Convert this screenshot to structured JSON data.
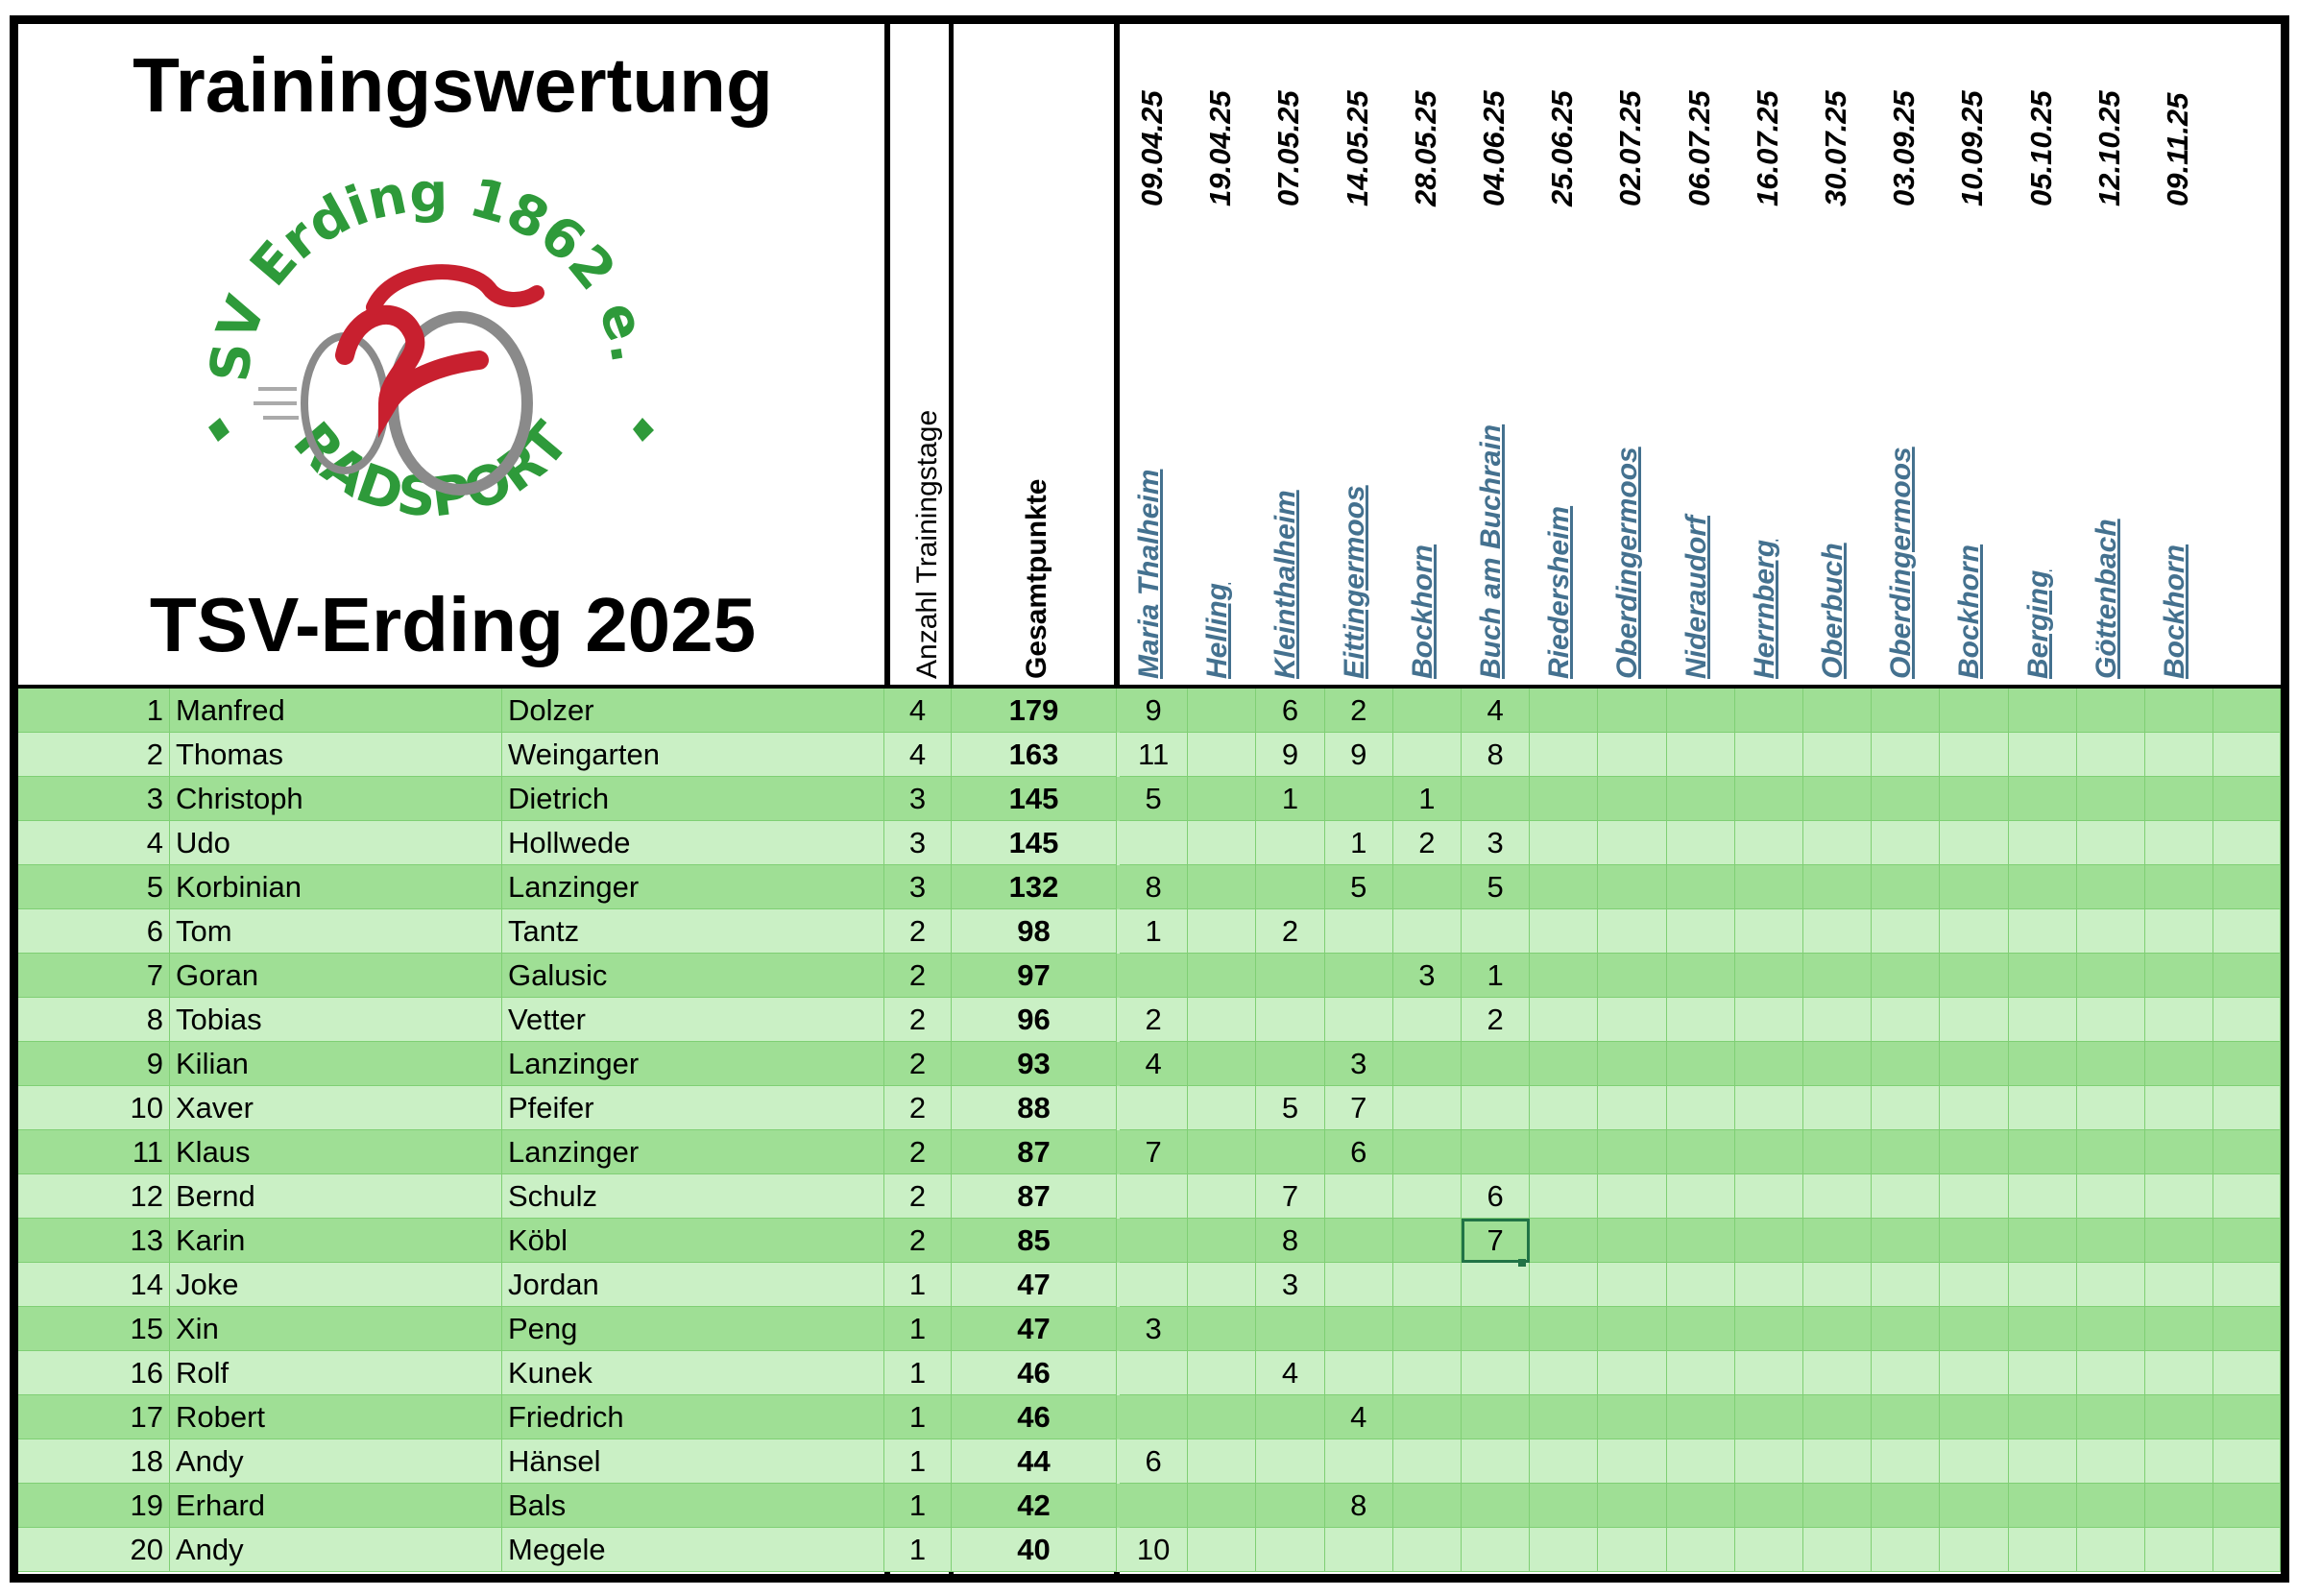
{
  "header": {
    "title": "Trainingswertung",
    "subtitle": "TSV-Erding 2025",
    "col_anzahl": "Anzahl Trainingstage",
    "col_gesamt": "Gesamtpunkte",
    "dates": [
      "09.04.25",
      "19.04.25",
      "07.05.25",
      "14.05.25",
      "28.05.25",
      "04.06.25",
      "25.06.25",
      "02.07.25",
      "06.07.25",
      "16.07.25",
      "30.07.25",
      "03.09.25",
      "10.09.25",
      "05.10.25",
      "12.10.25",
      "09.11.25"
    ],
    "places": [
      "Maria Thalheim",
      "Helling",
      "Kleinthalheim",
      "Eittingermoos",
      "Bockhorn",
      "Buch am Buchrain",
      "Riedersheim",
      "Oberdingermoos",
      "Nideraudorf",
      "Herrnberg",
      "Oberbuch",
      "Oberdingermoos",
      "Bockhorn",
      "Berging",
      "Göttenbach",
      "Bockhorn"
    ]
  },
  "logo": {
    "top_text": "TSV Erding 1862 e.V.",
    "bottom_text": "RADSPORT",
    "green": "#2e9a3a",
    "red": "#c8202f",
    "gray": "#8a8a8a"
  },
  "colors": {
    "row_dark": "#9fdf95",
    "row_light": "#caf0c5",
    "grid": "#7fcf74",
    "place_link": "#44718f"
  },
  "rows": [
    {
      "rank": "1",
      "first": "Manfred",
      "last": "Dolzer",
      "anzahl": "4",
      "gesamt": "179",
      "pts": [
        "9",
        "",
        "6",
        "2",
        "",
        "4",
        "",
        "",
        "",
        "",
        "",
        "",
        "",
        "",
        "",
        ""
      ]
    },
    {
      "rank": "2",
      "first": "Thomas",
      "last": "Weingarten",
      "anzahl": "4",
      "gesamt": "163",
      "pts": [
        "11",
        "",
        "9",
        "9",
        "",
        "8",
        "",
        "",
        "",
        "",
        "",
        "",
        "",
        "",
        "",
        ""
      ]
    },
    {
      "rank": "3",
      "first": "Christoph",
      "last": "Dietrich",
      "anzahl": "3",
      "gesamt": "145",
      "pts": [
        "5",
        "",
        "1",
        "",
        "1",
        "",
        "",
        "",
        "",
        "",
        "",
        "",
        "",
        "",
        "",
        ""
      ]
    },
    {
      "rank": "4",
      "first": "Udo",
      "last": "Hollwede",
      "anzahl": "3",
      "gesamt": "145",
      "pts": [
        "",
        "",
        "",
        "1",
        "2",
        "3",
        "",
        "",
        "",
        "",
        "",
        "",
        "",
        "",
        "",
        ""
      ]
    },
    {
      "rank": "5",
      "first": "Korbinian",
      "last": "Lanzinger",
      "anzahl": "3",
      "gesamt": "132",
      "pts": [
        "8",
        "",
        "",
        "5",
        "",
        "5",
        "",
        "",
        "",
        "",
        "",
        "",
        "",
        "",
        "",
        ""
      ]
    },
    {
      "rank": "6",
      "first": "Tom",
      "last": "Tantz",
      "anzahl": "2",
      "gesamt": "98",
      "pts": [
        "1",
        "",
        "2",
        "",
        "",
        "",
        "",
        "",
        "",
        "",
        "",
        "",
        "",
        "",
        "",
        ""
      ]
    },
    {
      "rank": "7",
      "first": "Goran",
      "last": "Galusic",
      "anzahl": "2",
      "gesamt": "97",
      "pts": [
        "",
        "",
        "",
        "",
        "3",
        "1",
        "",
        "",
        "",
        "",
        "",
        "",
        "",
        "",
        "",
        ""
      ]
    },
    {
      "rank": "8",
      "first": "Tobias",
      "last": "Vetter",
      "anzahl": "2",
      "gesamt": "96",
      "pts": [
        "2",
        "",
        "",
        "",
        "",
        "2",
        "",
        "",
        "",
        "",
        "",
        "",
        "",
        "",
        "",
        ""
      ]
    },
    {
      "rank": "9",
      "first": "Kilian",
      "last": "Lanzinger",
      "anzahl": "2",
      "gesamt": "93",
      "pts": [
        "4",
        "",
        "",
        "3",
        "",
        "",
        "",
        "",
        "",
        "",
        "",
        "",
        "",
        "",
        "",
        ""
      ]
    },
    {
      "rank": "10",
      "first": "Xaver",
      "last": "Pfeifer",
      "anzahl": "2",
      "gesamt": "88",
      "pts": [
        "",
        "",
        "5",
        "7",
        "",
        "",
        "",
        "",
        "",
        "",
        "",
        "",
        "",
        "",
        "",
        ""
      ]
    },
    {
      "rank": "11",
      "first": "Klaus",
      "last": "Lanzinger",
      "anzahl": "2",
      "gesamt": "87",
      "pts": [
        "7",
        "",
        "",
        "6",
        "",
        "",
        "",
        "",
        "",
        "",
        "",
        "",
        "",
        "",
        "",
        ""
      ]
    },
    {
      "rank": "12",
      "first": "Bernd",
      "last": "Schulz",
      "anzahl": "2",
      "gesamt": "87",
      "pts": [
        "",
        "",
        "7",
        "",
        "",
        "6",
        "",
        "",
        "",
        "",
        "",
        "",
        "",
        "",
        "",
        ""
      ]
    },
    {
      "rank": "13",
      "first": "Karin",
      "last": "Köbl",
      "anzahl": "2",
      "gesamt": "85",
      "pts": [
        "",
        "",
        "8",
        "",
        "",
        "7",
        "",
        "",
        "",
        "",
        "",
        "",
        "",
        "",
        "",
        ""
      ]
    },
    {
      "rank": "14",
      "first": "Joke",
      "last": "Jordan",
      "anzahl": "1",
      "gesamt": "47",
      "pts": [
        "",
        "",
        "3",
        "",
        "",
        "",
        "",
        "",
        "",
        "",
        "",
        "",
        "",
        "",
        "",
        ""
      ]
    },
    {
      "rank": "15",
      "first": "Xin",
      "last": "Peng",
      "anzahl": "1",
      "gesamt": "47",
      "pts": [
        "3",
        "",
        "",
        "",
        "",
        "",
        "",
        "",
        "",
        "",
        "",
        "",
        "",
        "",
        "",
        ""
      ]
    },
    {
      "rank": "16",
      "first": "Rolf",
      "last": "Kunek",
      "anzahl": "1",
      "gesamt": "46",
      "pts": [
        "",
        "",
        "4",
        "",
        "",
        "",
        "",
        "",
        "",
        "",
        "",
        "",
        "",
        "",
        "",
        ""
      ]
    },
    {
      "rank": "17",
      "first": "Robert",
      "last": "Friedrich",
      "anzahl": "1",
      "gesamt": "46",
      "pts": [
        "",
        "",
        "",
        "4",
        "",
        "",
        "",
        "",
        "",
        "",
        "",
        "",
        "",
        "",
        "",
        ""
      ]
    },
    {
      "rank": "18",
      "first": "Andy",
      "last": "Hänsel",
      "anzahl": "1",
      "gesamt": "44",
      "pts": [
        "6",
        "",
        "",
        "",
        "",
        "",
        "",
        "",
        "",
        "",
        "",
        "",
        "",
        "",
        "",
        ""
      ]
    },
    {
      "rank": "19",
      "first": "Erhard",
      "last": "Bals",
      "anzahl": "1",
      "gesamt": "42",
      "pts": [
        "",
        "",
        "",
        "8",
        "",
        "",
        "",
        "",
        "",
        "",
        "",
        "",
        "",
        "",
        "",
        ""
      ]
    },
    {
      "rank": "20",
      "first": "Andy",
      "last": "Megele",
      "anzahl": "1",
      "gesamt": "40",
      "pts": [
        "10",
        "",
        "",
        "",
        "",
        "",
        "",
        "",
        "",
        "",
        "",
        "",
        "",
        "",
        "",
        ""
      ]
    }
  ]
}
